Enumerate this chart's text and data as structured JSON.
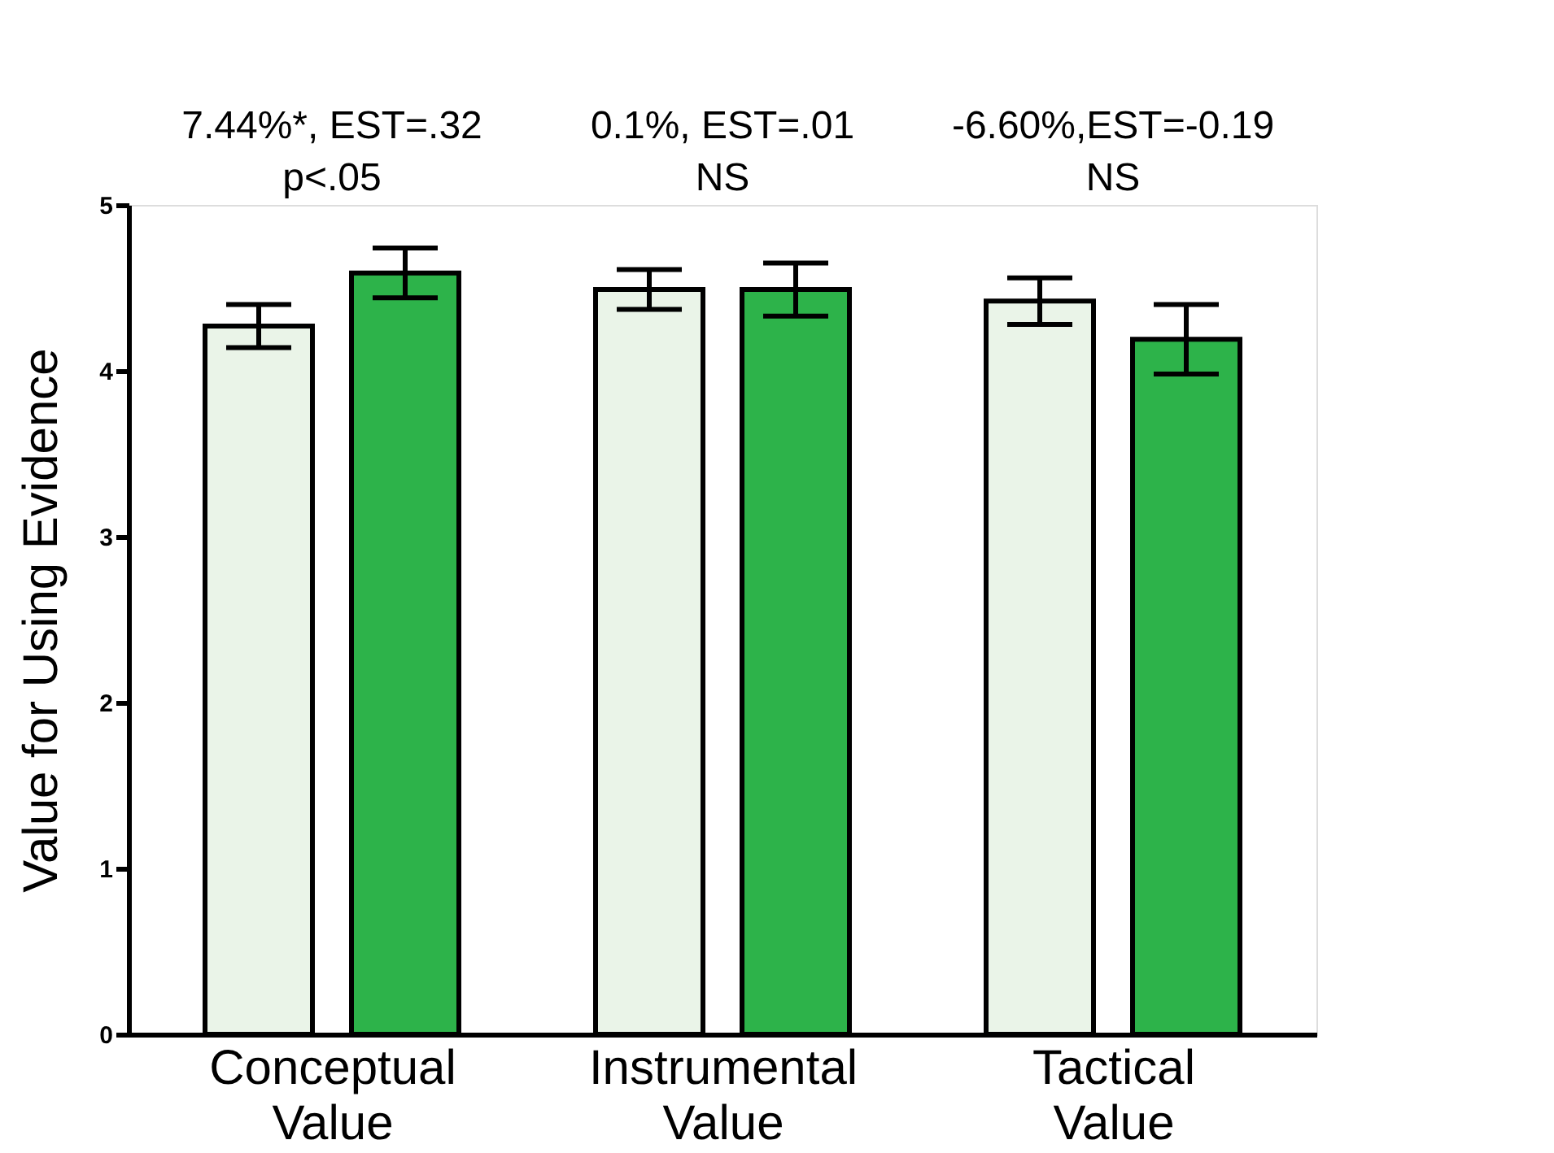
{
  "chart_data": {
    "type": "bar",
    "ylabel": "Value for Using Evidence",
    "categories": [
      "Conceptual Value",
      "Instrumental Value",
      "Tactical Value"
    ],
    "series": [
      {
        "color": "#eaf4e8",
        "values": [
          4.27,
          4.49,
          4.42
        ],
        "errors": [
          0.13,
          0.12,
          0.14
        ]
      },
      {
        "color": "#2db34a",
        "values": [
          4.59,
          4.49,
          4.19
        ],
        "errors": [
          0.15,
          0.16,
          0.21
        ]
      }
    ],
    "ylim": [
      0,
      5
    ],
    "yticks": [
      0,
      1,
      2,
      3,
      4,
      5
    ],
    "grid": false,
    "annotations": [
      "7.44%*, EST=.32",
      "p<.05",
      "0.1%, EST=.01",
      "NS",
      "-6.60%,EST=-0.19",
      "NS"
    ]
  }
}
